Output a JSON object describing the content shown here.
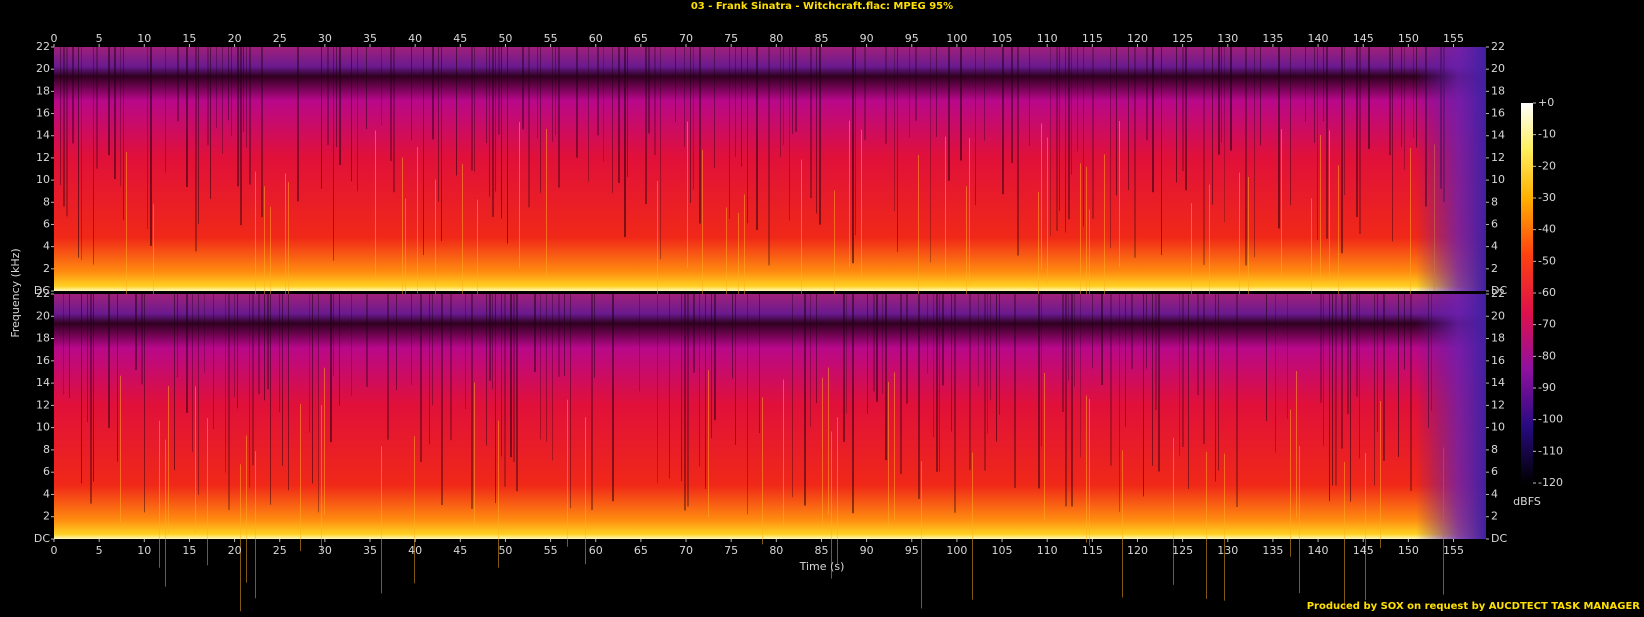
{
  "chart_data": {
    "type": "spectrogram",
    "title": "03 - Frank Sinatra - Witchcraft.flac: MPEG 95%",
    "x_label": "Time (s)",
    "y_label": "Frequency (kHz)",
    "xlim": [
      0,
      158.6
    ],
    "xticks": [
      0,
      5,
      10,
      15,
      20,
      25,
      30,
      35,
      40,
      45,
      50,
      55,
      60,
      65,
      70,
      75,
      80,
      85,
      90,
      95,
      100,
      105,
      110,
      115,
      120,
      125,
      130,
      135,
      140,
      145,
      150,
      155
    ],
    "ylim": [
      0,
      22
    ],
    "yticks": [
      {
        "value": 0,
        "label": "DC"
      },
      2,
      4,
      6,
      8,
      10,
      12,
      14,
      16,
      18,
      20,
      22
    ],
    "colorbar": {
      "label": "dBFS",
      "lim": [
        -120,
        0
      ],
      "ticks": [
        {
          "value": 0,
          "label": "+0"
        },
        -10,
        -20,
        -30,
        -40,
        -50,
        -60,
        -70,
        -80,
        -90,
        -100,
        -110,
        -120
      ]
    }
  },
  "footer": "Produced by SOX on request by AUCDTECT TASK MANAGER"
}
